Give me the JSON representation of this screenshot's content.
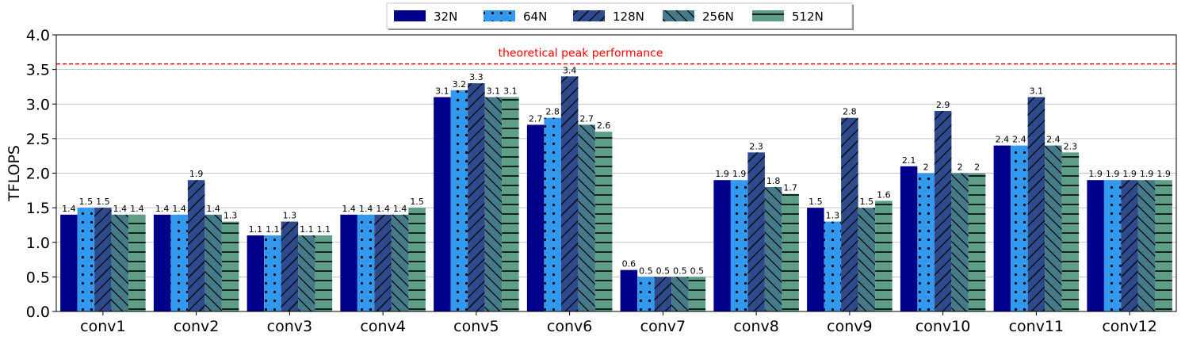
{
  "chart_data": {
    "type": "bar",
    "title": "",
    "xlabel": "",
    "ylabel": "TFLOPS",
    "ylim": [
      0,
      4.0
    ],
    "yticks": [
      "0.0",
      "0.5",
      "1.0",
      "1.5",
      "2.0",
      "2.5",
      "3.0",
      "3.5",
      "4.0"
    ],
    "grid": "horizontal",
    "legend_position": "top-center",
    "categories": [
      "conv1",
      "conv2",
      "conv3",
      "conv4",
      "conv5",
      "conv6",
      "conv7",
      "conv8",
      "conv9",
      "conv10",
      "conv11",
      "conv12"
    ],
    "series": [
      {
        "name": "32N",
        "color": "#00008b",
        "pattern": "solid",
        "values": [
          1.4,
          1.4,
          1.1,
          1.4,
          3.1,
          2.7,
          0.6,
          1.9,
          1.5,
          2.1,
          2.4,
          1.9
        ]
      },
      {
        "name": "64N",
        "color": "#3399ee",
        "pattern": "dots",
        "values": [
          1.5,
          1.4,
          1.1,
          1.4,
          3.2,
          2.8,
          0.5,
          1.9,
          1.3,
          2,
          2.4,
          1.9
        ]
      },
      {
        "name": "128N",
        "color": "#2e4a8c",
        "pattern": "slash",
        "values": [
          1.5,
          1.9,
          1.3,
          1.4,
          3.3,
          3.4,
          0.5,
          2.3,
          2.8,
          2.9,
          3.1,
          1.9
        ]
      },
      {
        "name": "256N",
        "color": "#457a8a",
        "pattern": "backslash",
        "values": [
          1.4,
          1.4,
          1.1,
          1.4,
          3.1,
          2.7,
          0.5,
          1.8,
          1.5,
          2,
          2.4,
          1.9
        ]
      },
      {
        "name": "512N",
        "color": "#5f9e86",
        "pattern": "horizontal",
        "values": [
          1.4,
          1.3,
          1.1,
          1.5,
          3.1,
          2.6,
          0.5,
          1.7,
          1.6,
          2,
          2.3,
          1.9
        ]
      }
    ],
    "annotations": [
      {
        "text": "theoretical peak performance",
        "y": 3.58,
        "color": "#ff0000",
        "style": "dashed"
      }
    ]
  }
}
